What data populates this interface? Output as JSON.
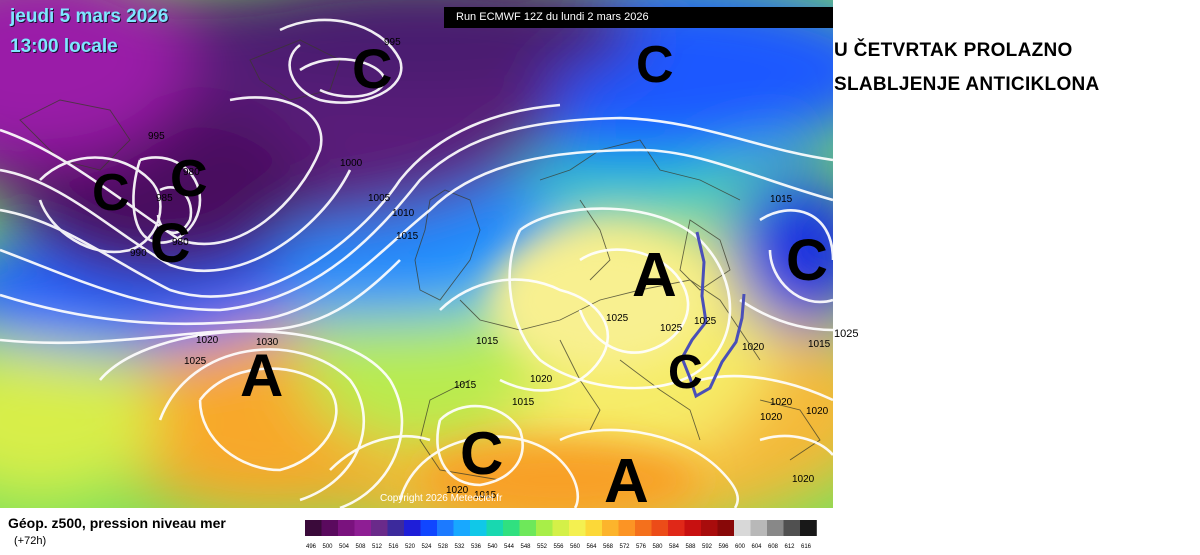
{
  "map": {
    "date_label": "jeudi 5 mars 2026",
    "time_label": "13:00 locale",
    "run_label": "Run ECMWF 12Z du lundi 2 mars 2026",
    "copyright": "Copyright 2026 Meteociel.fr",
    "pressure_centers": [
      "C",
      "C",
      "C",
      "C",
      "C",
      "C",
      "C",
      "A",
      "A",
      "A",
      "C",
      "C"
    ],
    "isobar_labels": [
      "995",
      "995",
      "1000",
      "1005",
      "1010",
      "1015",
      "980",
      "985",
      "980",
      "990",
      "1020",
      "1025",
      "1030",
      "1015",
      "1015",
      "1025",
      "1025",
      "1025",
      "1020",
      "1015",
      "1020",
      "1015",
      "1020",
      "1020",
      "1020",
      "1015",
      "1020",
      "1020",
      "1015"
    ],
    "overlay_note": "hand-drawn blue line over Balkans"
  },
  "headline": {
    "line1": "U ČETVRTAK PROLAZNO",
    "line2": "SLABLJENJE ANTICIKLONA"
  },
  "side_label": "1025",
  "footer": {
    "title": "Géop. z500, pression niveau mer",
    "subtitle": "(+72h)"
  },
  "legend": {
    "ticks": [
      "496",
      "500",
      "504",
      "508",
      "512",
      "516",
      "520",
      "524",
      "528",
      "532",
      "536",
      "540",
      "544",
      "548",
      "552",
      "556",
      "560",
      "564",
      "568",
      "572",
      "576",
      "580",
      "584",
      "588",
      "592",
      "596",
      "600",
      "604",
      "608",
      "612",
      "616"
    ],
    "colors": [
      "#3a0a3a",
      "#5a0a5e",
      "#7a127e",
      "#8e1e94",
      "#6a2a8a",
      "#3c2a9c",
      "#1e1ed8",
      "#1046ff",
      "#1c7aff",
      "#18a8ff",
      "#10c8e8",
      "#18d8b0",
      "#30e080",
      "#6ee85a",
      "#a8ee48",
      "#d4f048",
      "#f4f050",
      "#fcd838",
      "#fcb42c",
      "#fc9424",
      "#f4701c",
      "#ec4c18",
      "#e02818",
      "#c81010",
      "#a80c0c",
      "#880808",
      "#d8d8d8",
      "#b8b8b8",
      "#888888",
      "#505050",
      "#181818"
    ]
  }
}
